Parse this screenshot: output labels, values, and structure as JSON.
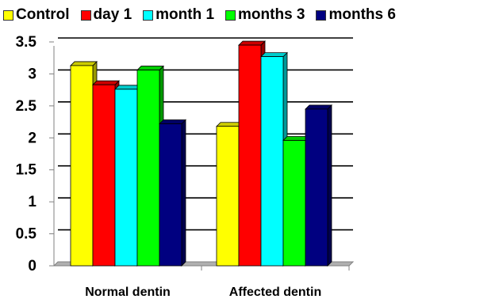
{
  "chart_data": {
    "type": "bar",
    "title": "",
    "xlabel": "",
    "ylabel": "",
    "categories": [
      "Normal dentin",
      "Affected dentin"
    ],
    "series": [
      {
        "name": "Control",
        "color": "#ffff00",
        "values": [
          3.13,
          2.18
        ]
      },
      {
        "name": "day 1",
        "color": "#ff0000",
        "values": [
          2.83,
          3.45
        ]
      },
      {
        "name": "month 1",
        "color": "#00ffff",
        "values": [
          2.76,
          3.27
        ]
      },
      {
        "name": "months 3",
        "color": "#00ff00",
        "values": [
          3.06,
          1.96
        ]
      },
      {
        "name": "months 6",
        "color": "#000080",
        "values": [
          2.22,
          2.45
        ]
      }
    ],
    "ylim": [
      0,
      3.5
    ],
    "yticks": [
      "0",
      "0.5",
      "1",
      "1.5",
      "2",
      "2.5",
      "3",
      "3.5"
    ],
    "grid": true,
    "legend_position": "top"
  }
}
